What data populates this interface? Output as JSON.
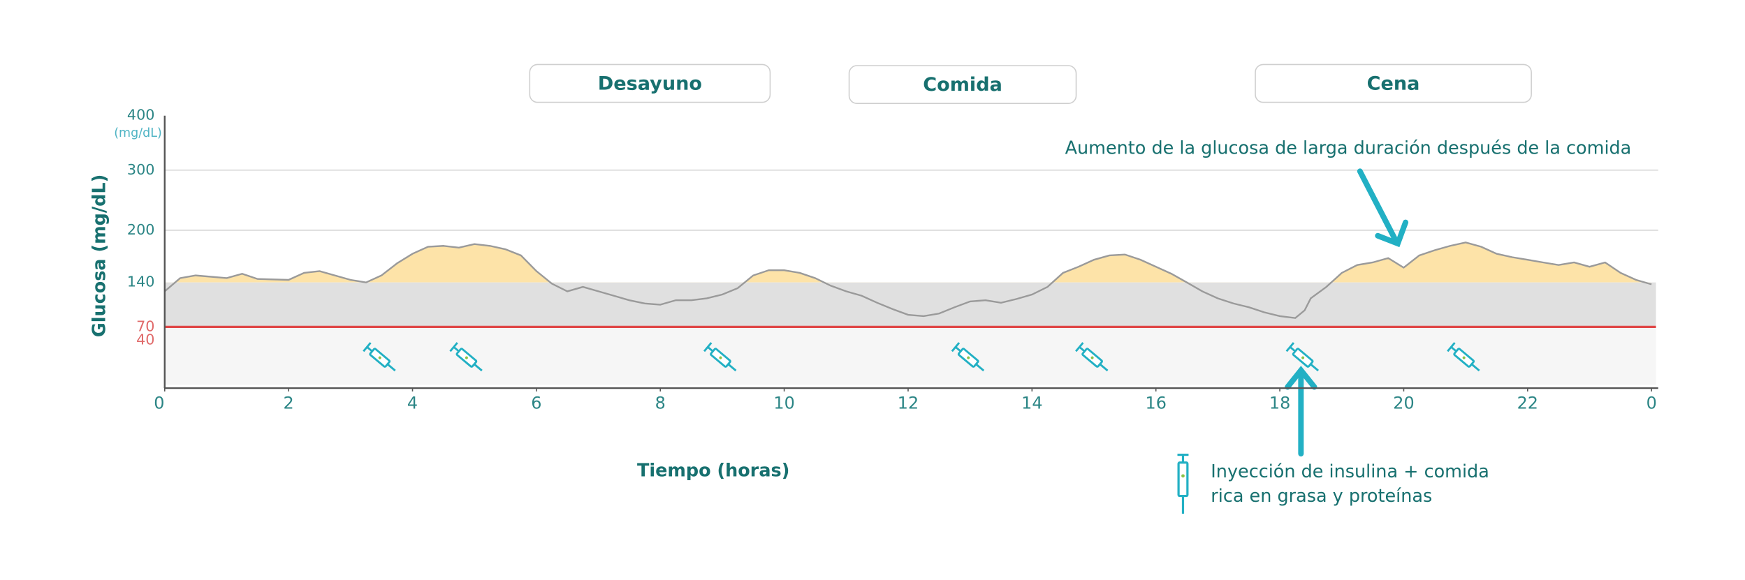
{
  "chart_data": {
    "type": "line",
    "meals": [
      "Desayuno",
      "Comida",
      "Cena"
    ],
    "y_label": "Glucosa (mg/dL)",
    "y_unit": "(mg/dL)",
    "x_label": "Tiempo (horas)",
    "annotation": "Aumento de la glucosa de larga duración después de la comida",
    "injection_label": [
      "Inyección de insulina + comida",
      "rica en grasa y proteínas"
    ],
    "ylim": [
      0,
      400
    ],
    "yticks": [
      400,
      300,
      200,
      140,
      70,
      40
    ],
    "grid_values": [
      300,
      200
    ],
    "target_range": [
      70,
      140
    ],
    "low_limit": 70,
    "xlim": [
      0,
      24
    ],
    "xticks": [
      0,
      2,
      4,
      6,
      8,
      10,
      12,
      14,
      16,
      18,
      20,
      22,
      {
        "value": 24,
        "label": "0"
      }
    ],
    "line_color": "#9a9a9a",
    "high_fill": "#fde3a8",
    "x": [
      0,
      0.25,
      0.5,
      1,
      1.25,
      1.5,
      2,
      2.25,
      2.5,
      3,
      3.25,
      3.5,
      3.75,
      4,
      4.25,
      4.5,
      4.75,
      5,
      5.25,
      5.5,
      5.75,
      6,
      6.25,
      6.5,
      6.75,
      7,
      7.25,
      7.5,
      7.75,
      8,
      8.25,
      8.5,
      8.75,
      9,
      9.25,
      9.5,
      9.75,
      10,
      10.25,
      10.5,
      10.75,
      11,
      11.25,
      11.5,
      11.75,
      12,
      12.25,
      12.5,
      12.75,
      13,
      13.25,
      13.5,
      13.75,
      14,
      14.25,
      14.5,
      14.75,
      15,
      15.25,
      15.5,
      15.75,
      16,
      16.25,
      16.5,
      16.75,
      17,
      17.25,
      17.5,
      17.75,
      18,
      18.25,
      18.4,
      18.5,
      18.75,
      19,
      19.25,
      19.5,
      19.75,
      20,
      20.25,
      20.5,
      20.75,
      21,
      21.25,
      21.5,
      21.75,
      22,
      22.25,
      22.5,
      22.75,
      23,
      23.25,
      23.5,
      23.75,
      24
    ],
    "values": [
      126,
      145,
      148,
      145,
      150,
      144,
      143,
      151,
      153,
      143,
      140,
      148,
      162,
      173,
      181,
      182,
      180,
      184,
      182,
      178,
      171,
      153,
      138,
      126,
      133,
      126,
      119,
      112,
      107,
      105,
      112,
      112,
      115,
      121,
      131,
      148,
      154,
      154,
      151,
      145,
      135,
      126,
      119,
      108,
      98,
      89,
      87,
      91,
      101,
      110,
      112,
      108,
      114,
      121,
      133,
      151,
      158,
      166,
      171,
      172,
      166,
      158,
      150,
      140,
      126,
      115,
      107,
      101,
      93,
      87,
      84,
      96,
      115,
      133,
      151,
      160,
      163,
      168,
      157,
      171,
      177,
      182,
      186,
      181,
      173,
      169,
      166,
      163,
      160,
      163,
      158,
      163,
      151,
      143,
      137
    ],
    "injections": [
      3.5,
      4.9,
      9,
      13,
      15,
      18.4,
      21
    ]
  }
}
